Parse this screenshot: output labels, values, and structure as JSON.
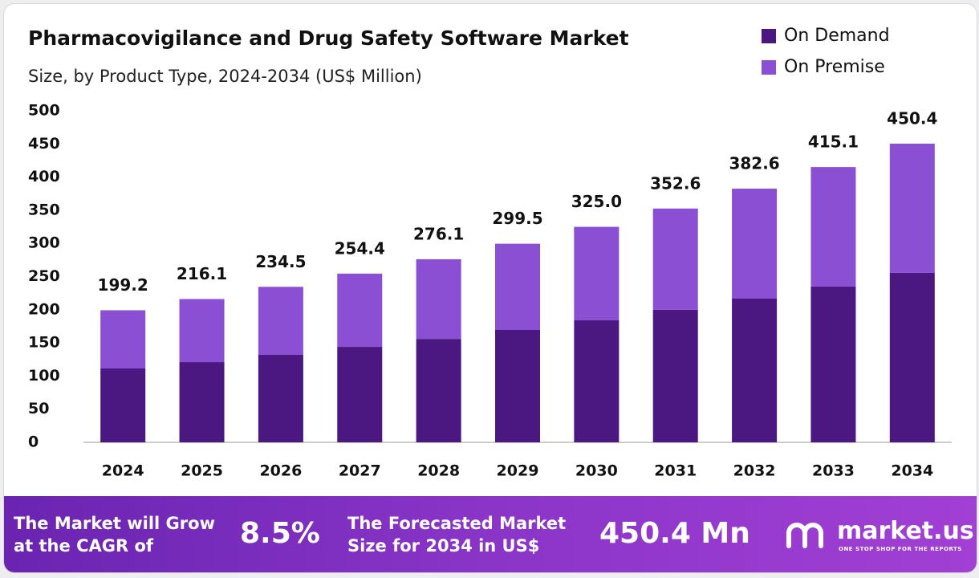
{
  "chart_data": {
    "type": "stacked_bar",
    "title": "Pharmacovigilance and Drug Safety Software Market",
    "subtitle": "Size, by Product Type, 2024-2034 (US$ Million)",
    "categories": [
      "2024",
      "2025",
      "2026",
      "2027",
      "2028",
      "2029",
      "2030",
      "2031",
      "2032",
      "2033",
      "2034"
    ],
    "series": [
      {
        "name": "On Demand",
        "color": "#4b1882",
        "values": [
          111.4,
          121,
          132,
          144,
          156,
          169.5,
          184,
          200,
          216.7,
          235,
          255.5
        ]
      },
      {
        "name": "On Premise",
        "color": "#8a4fd2",
        "values": [
          87.8,
          95.1,
          102.5,
          110.4,
          120.1,
          130,
          141,
          152.6,
          165.9,
          180.1,
          194.9
        ]
      }
    ],
    "total_labels": [
      "199.2",
      "216.1",
      "234.5",
      "254.4",
      "276.1",
      "299.5",
      "325.0",
      "352.6",
      "382.6",
      "415.1",
      "450.4"
    ],
    "ylim": [
      0,
      500
    ],
    "yticks": [
      0,
      50,
      100,
      150,
      200,
      250,
      300,
      350,
      400,
      450,
      500
    ],
    "grid": false,
    "legend": "top-right"
  },
  "footer": {
    "cagr_text": [
      "The Market will Grow",
      "at the CAGR of"
    ],
    "cagr_value": "8.5%",
    "forecast_text": [
      "The Forecasted Market",
      "Size for 2034 in US$"
    ],
    "forecast_value": "450.4 Mn",
    "brand": "market.us",
    "tagline": "ONE STOP SHOP FOR THE REPORTS"
  }
}
